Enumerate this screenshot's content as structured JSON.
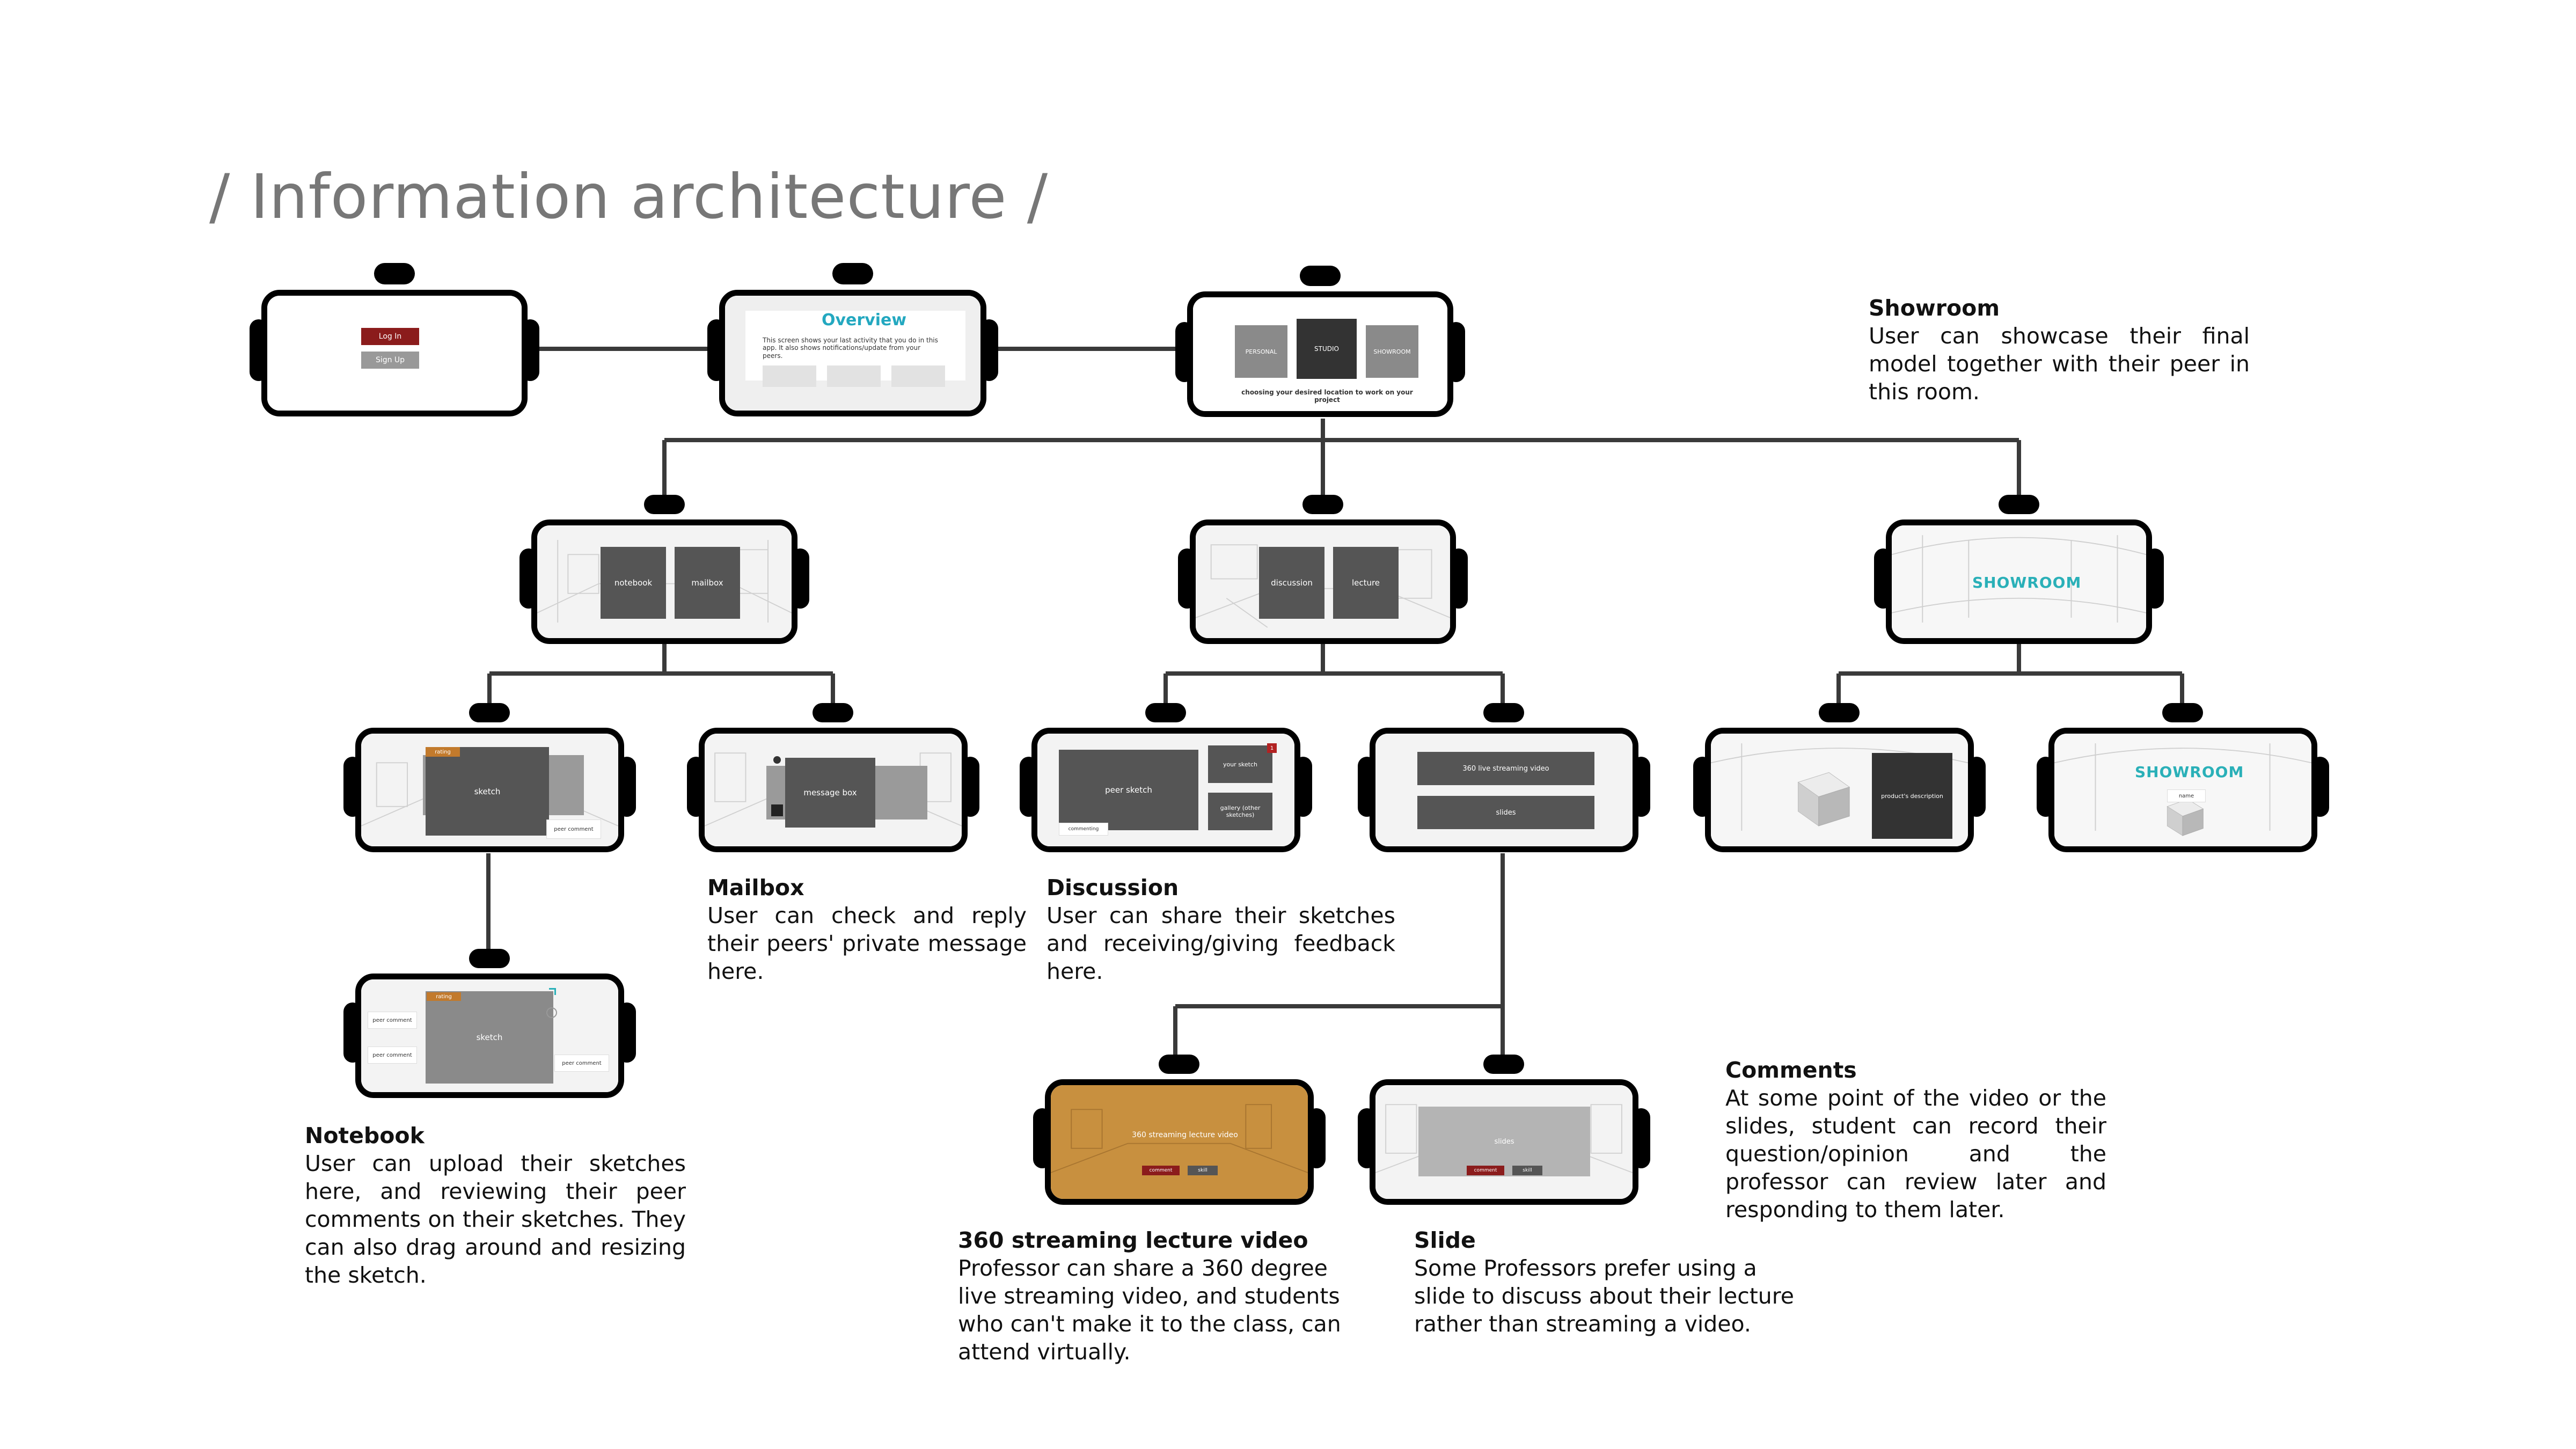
{
  "title": "/ Information architecture /",
  "screens": {
    "login": {
      "login_label": "Log In",
      "signup_label": "Sign Up"
    },
    "overview": {
      "heading": "Overview",
      "body": "This screen shows your last activity that you do in this app. It also shows notifications/update from your peers."
    },
    "location": {
      "tile1": "PERSONAL",
      "tile2": "STUDIO",
      "tile3": "SHOWROOM",
      "caption": "choosing your desired location to work on your project"
    },
    "personal": {
      "tile1": "notebook",
      "tile2": "mailbox"
    },
    "studio": {
      "tile1": "discussion",
      "tile2": "lecture"
    },
    "showroom": {
      "label": "SHOWROOM"
    },
    "sketch": {
      "tag": "rating",
      "main": "sketch",
      "side": "peer comment"
    },
    "mailbox": {
      "main": "message box"
    },
    "discussion": {
      "main": "peer sketch",
      "side1": "your sketch",
      "side2": "gallery (other sketches)",
      "badge": "1",
      "bottom": "commenting"
    },
    "lecture": {
      "tile1": "360 live streaming video",
      "tile2": "slides"
    },
    "product": {
      "main": "product's description"
    },
    "showroom2": {
      "label": "SHOWROOM",
      "tag": "name"
    },
    "notebook2": {
      "tag": "rating",
      "main": "sketch",
      "left1": "peer comment",
      "left2": "peer comment",
      "right": "peer comment"
    },
    "video": {
      "main": "360 streaming lecture video",
      "btn1": "comment",
      "btn2": "skill"
    },
    "slides": {
      "main": "slides",
      "btn1": "comment",
      "btn2": "skill"
    }
  },
  "notes": {
    "showroom": {
      "heading": "Showroom",
      "body": "User can showcase their final model together with their peer in this room."
    },
    "mailbox": {
      "heading": "Mailbox",
      "body": "User can check and reply their peers' private message here."
    },
    "discussion": {
      "heading": "Discussion",
      "body": "User can share their sketches and receiving/giving feedback here."
    },
    "comments": {
      "heading": "Comments",
      "body": "At some point of the video or the slides, student can record their question/opinion and the professor can review later and responding to them later."
    },
    "notebook": {
      "heading": "Notebook",
      "body": "User can upload their sketches here, and reviewing their peer comments on their sketches. They can also drag around and resizing the sketch."
    },
    "video": {
      "heading": "360 streaming lecture video",
      "body": "Professor can share a 360 degree live streaming video, and students who can't make it to the class, can attend virtually."
    },
    "slide": {
      "heading": "Slide",
      "body": "Some Professors prefer using a slide to discuss about their lecture rather than streaming a video."
    }
  },
  "colors": {
    "accent_teal": "#23a8c0",
    "button_red": "#8b1c1c",
    "video_orange": "#c8903f",
    "tile_grey": "#555555"
  }
}
